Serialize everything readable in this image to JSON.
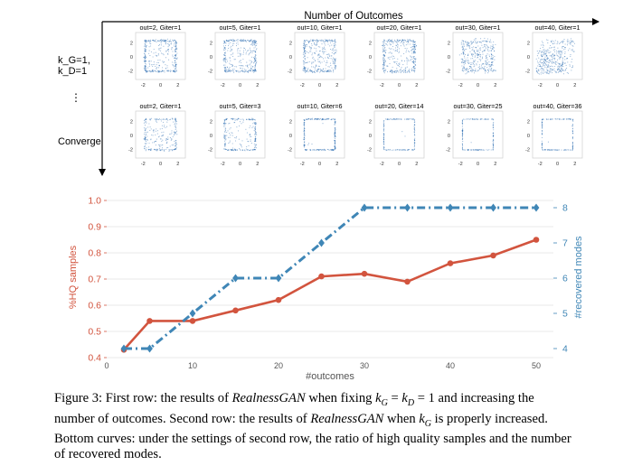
{
  "figure": {
    "top_axis_label": "Number of Outcomes",
    "row1_label_line1": "k_G=1,",
    "row1_label_line2": "k_D=1",
    "ellipsis": "⋮",
    "row2_label": "Converge",
    "panel_ticks": {
      "x": [
        "-2",
        "0",
        "2"
      ],
      "y": [
        "2",
        "0",
        "-2"
      ]
    },
    "row1_titles": [
      "out=2, Giter=1",
      "out=5, Giter=1",
      "out=10, Giter=1",
      "out=20, Giter=1",
      "out=30, Giter=1",
      "out=40, Giter=1"
    ],
    "row2_titles": [
      "out=2, Giter=1",
      "out=5, Giter=3",
      "out=10, Giter=6",
      "out=20, Giter=14",
      "out=30, Giter=25",
      "out=40, Giter=36"
    ]
  },
  "chart_data": {
    "type": "line",
    "xlabel": "#outcomes",
    "ylabel_left": "%HQ samples",
    "ylabel_right": "#recovered modes",
    "xlim": [
      0,
      52
    ],
    "ylim_left": [
      0.4,
      1.0
    ],
    "ylim_right": [
      4,
      8.25
    ],
    "x_ticks": [
      0,
      10,
      20,
      30,
      40,
      50
    ],
    "y_ticks_left": [
      "0.4",
      "0.5",
      "0.6",
      "0.7",
      "0.8",
      "0.9",
      "1.0"
    ],
    "y_ticks_right": [
      "4",
      "5",
      "6",
      "7",
      "8"
    ],
    "grid": "horizontal",
    "colors": {
      "hq": "#d2543e",
      "modes": "#3f86b6"
    },
    "series": [
      {
        "x": [
          2,
          5,
          10,
          15,
          20,
          25,
          30,
          35,
          40,
          45,
          50
        ],
        "values": [
          0.43,
          0.54,
          0.54,
          0.58,
          0.62,
          0.71,
          0.72,
          0.69,
          0.76,
          0.79,
          0.85
        ],
        "axis": "left"
      },
      {
        "x": [
          2,
          5,
          10,
          15,
          20,
          25,
          30,
          35,
          40,
          45,
          50
        ],
        "values": [
          4,
          4,
          5,
          6,
          6,
          7,
          8,
          8,
          8,
          8,
          8
        ],
        "axis": "right"
      }
    ]
  },
  "caption": {
    "l1a": "Figure 3:  First row:  the results of ",
    "name": "RealnessGAN",
    "l1b": " when fixing ",
    "kG": "k",
    "subG": "G",
    "eq1": " = ",
    "kD": "k",
    "subD": "D",
    "eq2": " = 1 and increasing the",
    "l2a": "number of outcomes.  Second row:  the results of ",
    "l2b": " when ",
    "l2c": " is properly increased.",
    "l3": "Bottom curves: under the settings of second row, the ratio of high quality samples and the number",
    "l4": "of recovered modes."
  }
}
